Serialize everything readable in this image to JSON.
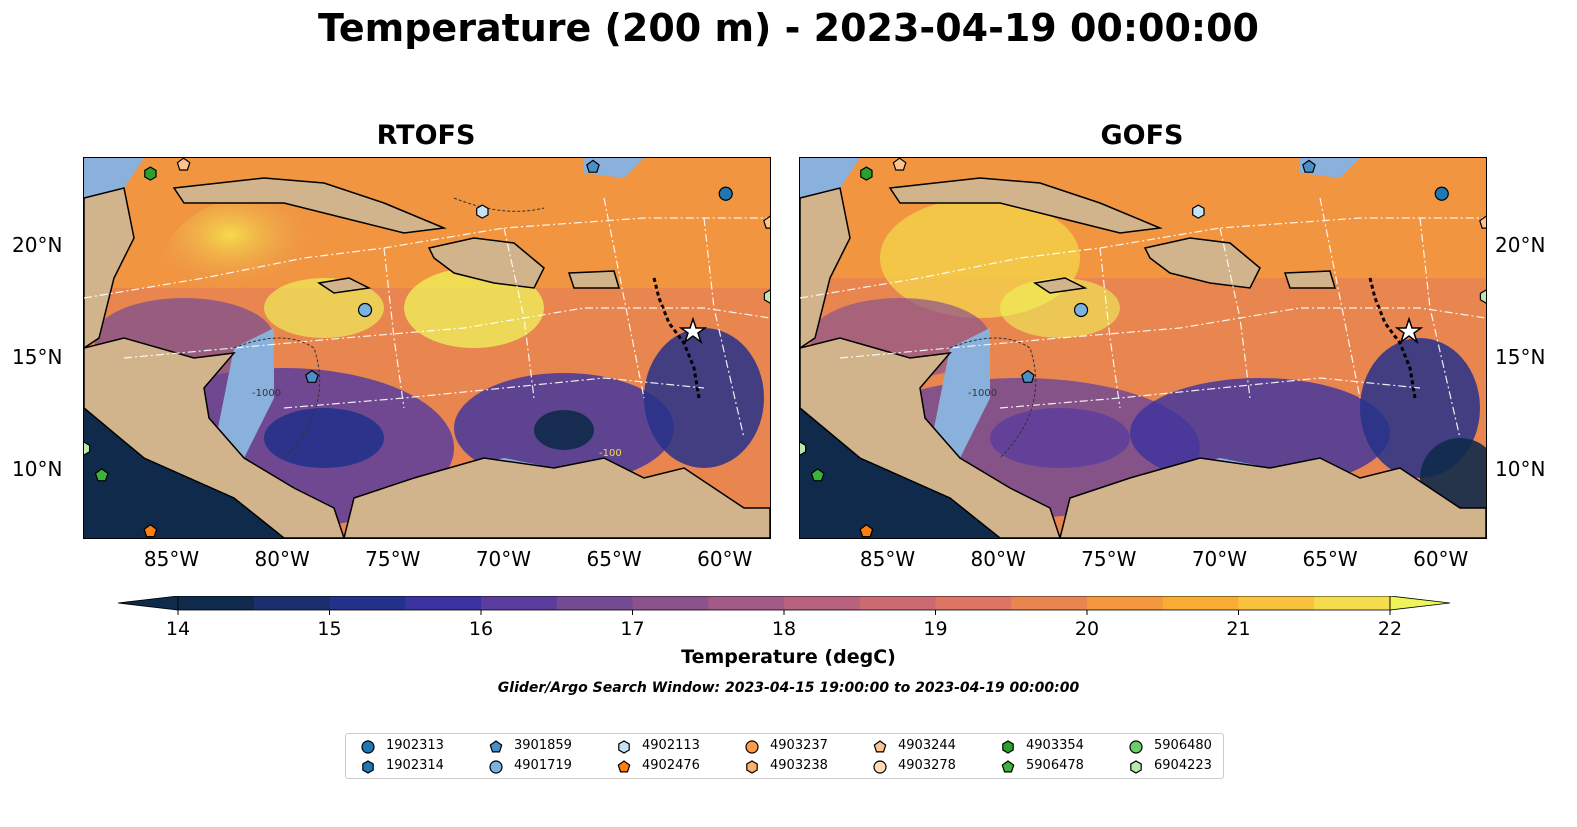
{
  "title": "Temperature (200 m) - 2023-04-19 00:00:00",
  "panels": [
    {
      "title": "RTOFS"
    },
    {
      "title": "GOFS"
    }
  ],
  "map": {
    "lon_range": [
      -89,
      -58
    ],
    "lat_range": [
      7,
      24
    ],
    "lon_ticks": [
      "85°W",
      "80°W",
      "75°W",
      "70°W",
      "65°W",
      "60°W"
    ],
    "lat_ticks": [
      "20°N",
      "15°N",
      "10°N"
    ],
    "contour_labels": [
      "-1000",
      "-100"
    ]
  },
  "colorbar": {
    "label": "Temperature (degC)",
    "min": 14,
    "max": 22,
    "step": 0.5,
    "ticks": [
      "14",
      "15",
      "16",
      "17",
      "18",
      "19",
      "20",
      "21",
      "22"
    ],
    "colors": [
      "#0f2a4a",
      "#1a2f6b",
      "#24318a",
      "#3b33a0",
      "#5a3d9c",
      "#744a93",
      "#8c528c",
      "#a35a86",
      "#b8627e",
      "#cc6a74",
      "#dc7565",
      "#e9854f",
      "#f3983c",
      "#f8ac35",
      "#f9c33d",
      "#f5dc4c",
      "#eef45a"
    ]
  },
  "search_window": "Glider/Argo Search Window: 2023-04-15 19:00:00 to 2023-04-19 00:00:00",
  "legend": [
    {
      "label": "1902313",
      "marker": "circle",
      "color": "#1f77b4"
    },
    {
      "label": "1902314",
      "marker": "hexagon",
      "color": "#1f77b4"
    },
    {
      "label": "3901859",
      "marker": "pentagon",
      "color": "#4a90c8"
    },
    {
      "label": "4901719",
      "marker": "circle",
      "color": "#7bb3e0"
    },
    {
      "label": "4902113",
      "marker": "hexagon",
      "color": "#c6e2f5"
    },
    {
      "label": "4902476",
      "marker": "pentagon",
      "color": "#ff7f0e"
    },
    {
      "label": "4903237",
      "marker": "circle",
      "color": "#fd9b48"
    },
    {
      "label": "4903238",
      "marker": "hexagon",
      "color": "#fdb06c"
    },
    {
      "label": "4903244",
      "marker": "pentagon",
      "color": "#fdc391"
    },
    {
      "label": "4903278",
      "marker": "circle",
      "color": "#fdd9b8"
    },
    {
      "label": "4903354",
      "marker": "hexagon",
      "color": "#2ca02c"
    },
    {
      "label": "5906478",
      "marker": "pentagon",
      "color": "#3cb43c"
    },
    {
      "label": "5906480",
      "marker": "circle",
      "color": "#6ccf6c"
    },
    {
      "label": "6904223",
      "marker": "hexagon",
      "color": "#b8eab0"
    }
  ],
  "floats": [
    {
      "label": "1902313",
      "lon": -60.0,
      "lat": 22.4
    },
    {
      "label": "3901859",
      "lon": -66.0,
      "lat": 23.6
    },
    {
      "label": "4902113",
      "lon": -71.0,
      "lat": 21.6
    },
    {
      "label": "4903244",
      "lon": -58.0,
      "lat": 21.1
    },
    {
      "label": "4903354",
      "lon": -86.0,
      "lat": 23.3
    },
    {
      "label": "4903244",
      "lon": -84.5,
      "lat": 23.7
    },
    {
      "label": "4901719",
      "lon": -76.3,
      "lat": 17.2
    },
    {
      "label": "3901859",
      "lon": -78.7,
      "lat": 14.2
    },
    {
      "label": "6904223",
      "lon": -58.0,
      "lat": 17.8
    },
    {
      "label": "6904223",
      "lon": -89.0,
      "lat": 11.0
    },
    {
      "label": "5906478",
      "lon": -88.2,
      "lat": 9.8
    },
    {
      "label": "4902476",
      "lon": -86.0,
      "lat": 7.3
    }
  ]
}
